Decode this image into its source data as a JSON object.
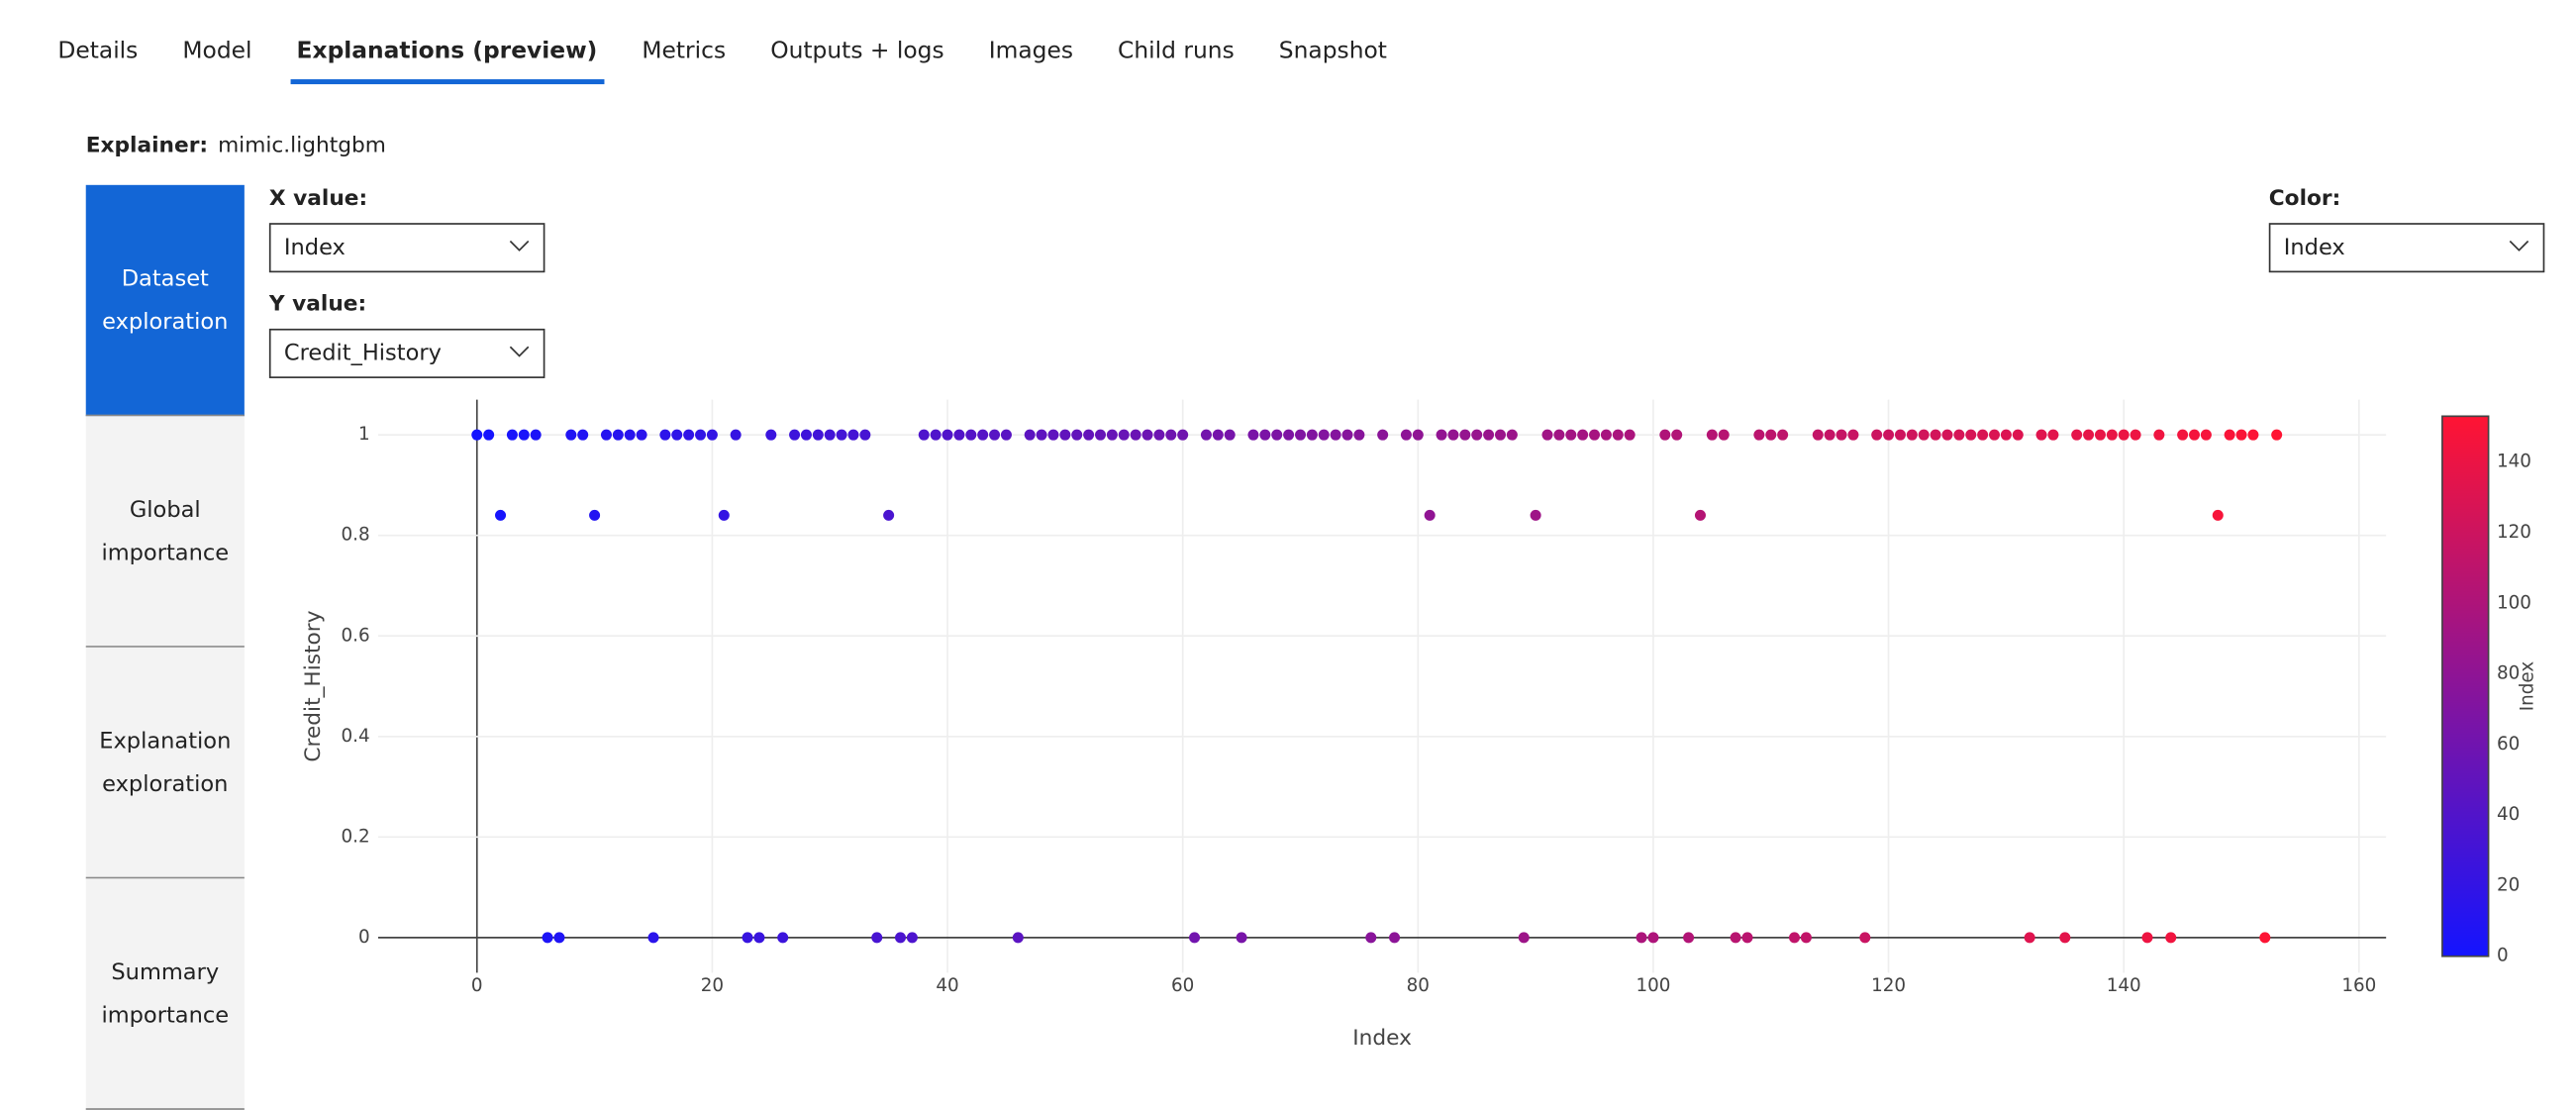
{
  "tabs": [
    "Details",
    "Model",
    "Explanations (preview)",
    "Metrics",
    "Outputs + logs",
    "Images",
    "Child runs",
    "Snapshot"
  ],
  "active_tab": 2,
  "explainer": {
    "label": "Explainer:",
    "value": "mimic.lightgbm"
  },
  "side_nav": [
    "Dataset exploration",
    "Global importance",
    "Explanation exploration",
    "Summary importance"
  ],
  "active_nav": 0,
  "controls": {
    "x": {
      "label": "X value:",
      "value": "Index"
    },
    "y": {
      "label": "Y value:",
      "value": "Credit_History"
    },
    "color": {
      "label": "Color:",
      "value": "Index"
    }
  },
  "chart_data": {
    "type": "scatter",
    "x_label": "Index",
    "y_label": "Credit_History",
    "x": [
      0,
      1,
      2,
      3,
      4,
      5,
      6,
      7,
      8,
      9,
      10,
      11,
      12,
      13,
      14,
      15,
      16,
      17,
      18,
      19,
      20,
      21,
      22,
      23,
      24,
      25,
      26,
      27,
      28,
      29,
      30,
      31,
      32,
      33,
      34,
      35,
      36,
      37,
      38,
      39,
      40,
      41,
      42,
      43,
      44,
      45,
      46,
      47,
      48,
      49,
      50,
      51,
      52,
      53,
      54,
      55,
      56,
      57,
      58,
      59,
      60,
      61,
      62,
      63,
      64,
      65,
      66,
      67,
      68,
      69,
      70,
      71,
      72,
      73,
      74,
      75,
      76,
      77,
      78,
      79,
      80,
      81,
      82,
      83,
      84,
      85,
      86,
      87,
      88,
      89,
      90,
      91,
      92,
      93,
      94,
      95,
      96,
      97,
      98,
      99,
      100,
      101,
      102,
      103,
      104,
      105,
      106,
      107,
      108,
      109,
      110,
      111,
      112,
      113,
      114,
      115,
      116,
      117,
      118,
      119,
      120,
      121,
      122,
      123,
      124,
      125,
      126,
      127,
      128,
      129,
      130,
      131,
      132,
      133,
      134,
      135,
      136,
      137,
      138,
      139,
      140,
      141,
      142,
      143,
      144,
      145,
      146,
      147,
      148,
      149,
      150,
      151,
      152,
      153
    ],
    "y": [
      1,
      1,
      0.84,
      1,
      1,
      1,
      0,
      0,
      1,
      1,
      0.84,
      1,
      1,
      1,
      1,
      0,
      1,
      1,
      1,
      1,
      1,
      0.84,
      1,
      0,
      0,
      1,
      0,
      1,
      1,
      1,
      1,
      1,
      1,
      1,
      0,
      0.84,
      0,
      0,
      1,
      1,
      1,
      1,
      1,
      1,
      1,
      1,
      0,
      1,
      1,
      1,
      1,
      1,
      1,
      1,
      1,
      1,
      1,
      1,
      1,
      1,
      1,
      0,
      1,
      1,
      1,
      0,
      1,
      1,
      1,
      1,
      1,
      1,
      1,
      1,
      1,
      1,
      0,
      1,
      0,
      1,
      1,
      0.84,
      1,
      1,
      1,
      1,
      1,
      1,
      1,
      0,
      0.84,
      1,
      1,
      1,
      1,
      1,
      1,
      1,
      1,
      0,
      0,
      1,
      1,
      0,
      0.84,
      1,
      1,
      0,
      0,
      1,
      1,
      1,
      0,
      0,
      1,
      1,
      1,
      1,
      0,
      1,
      1,
      1,
      1,
      1,
      1,
      1,
      1,
      1,
      1,
      1,
      1,
      1,
      0,
      1,
      1,
      0,
      1,
      1,
      1,
      1,
      1,
      1,
      0,
      1,
      0,
      1,
      1,
      1,
      0.84,
      1,
      1,
      1,
      0,
      1
    ],
    "xlim": [
      -8.4,
      162.3
    ],
    "ylim": [
      -0.07,
      1.07
    ],
    "xticks": [
      0,
      20,
      40,
      60,
      80,
      100,
      120,
      140,
      160
    ],
    "yticks": [
      0,
      0.2,
      0.4,
      0.6,
      0.8,
      1
    ],
    "grid": true,
    "zeroline": true,
    "colorscale": [
      "#1414ff",
      "#ff1433"
    ],
    "colorbar": {
      "title": "Index",
      "lim": [
        0,
        153
      ],
      "ticks": [
        0,
        20,
        40,
        60,
        80,
        100,
        120,
        140
      ]
    }
  }
}
